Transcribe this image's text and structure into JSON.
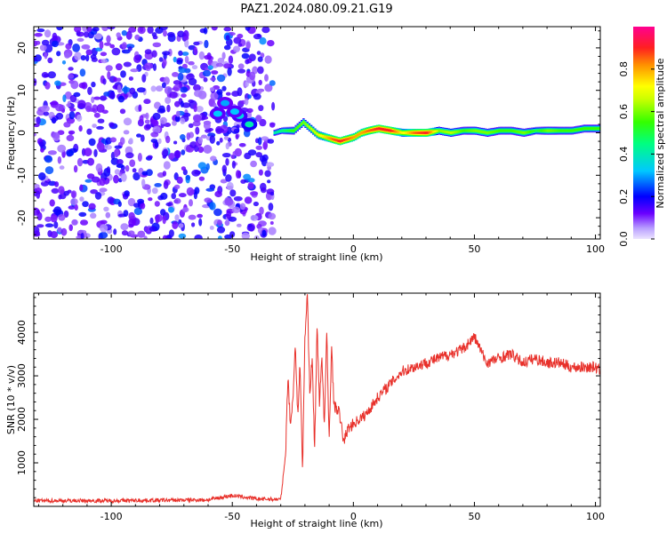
{
  "title": "PAZ1.2024.080.09.21.G19",
  "chart_data": [
    {
      "type": "heatmap",
      "xlabel": "Height of straight line (km)",
      "ylabel": "Frequency (Hz)",
      "xlim": [
        -132,
        102
      ],
      "ylim": [
        -25,
        25
      ],
      "xticks": [
        -100,
        -50,
        0,
        50,
        100
      ],
      "yticks": [
        -20,
        -10,
        0,
        10,
        20
      ],
      "colorbar": {
        "label": "Normalized spectral amplitude",
        "range": [
          0.0,
          1.0
        ],
        "ticks": [
          0.0,
          0.2,
          0.4,
          0.6,
          0.8
        ],
        "colors": [
          "#e6dcff",
          "#7a00ff",
          "#0000ff",
          "#00c8ff",
          "#00ff80",
          "#7fff00",
          "#ffff00",
          "#ff8000",
          "#ff0030",
          "#ff0090"
        ]
      },
      "noise_region": {
        "x": [
          -132,
          -33
        ],
        "y": [
          -25,
          25
        ],
        "amplitude": [
          0.05,
          0.2
        ]
      },
      "signal_trace": {
        "x": [
          -33,
          -30,
          -25,
          -21,
          -18,
          -15,
          -12,
          -9,
          -6,
          -3,
          0,
          3,
          6,
          10,
          15,
          20,
          25,
          30,
          35,
          40,
          45,
          50,
          55,
          60,
          65,
          70,
          75,
          80,
          85,
          90,
          95,
          100
        ],
        "frequency": [
          0,
          0.5,
          0.5,
          2.5,
          1,
          -0.5,
          -1,
          -1.5,
          -2,
          -1.5,
          -1,
          0,
          0.5,
          1,
          0.5,
          0,
          0,
          0,
          0.5,
          0,
          0.5,
          0.5,
          0,
          0.5,
          0.5,
          0,
          0.5,
          0.5,
          0.5,
          0.5,
          1,
          1
        ],
        "amplitude": [
          0.4,
          0.45,
          0.55,
          0.6,
          0.65,
          0.7,
          0.75,
          0.85,
          0.9,
          0.85,
          0.8,
          0.8,
          0.85,
          0.9,
          0.9,
          0.7,
          0.85,
          0.9,
          0.6,
          0.65,
          0.55,
          0.6,
          0.6,
          0.55,
          0.55,
          0.6,
          0.5,
          0.6,
          0.55,
          0.55,
          0.55,
          0.55
        ]
      },
      "blobs": [
        {
          "x": -56,
          "y": 4.5,
          "amplitude": 0.22
        },
        {
          "x": -53,
          "y": 7,
          "amplitude": 0.2
        },
        {
          "x": -47,
          "y": 4,
          "amplitude": 0.25
        },
        {
          "x": -43,
          "y": 2,
          "amplitude": 0.3
        },
        {
          "x": -49,
          "y": 5,
          "amplitude": 0.22
        }
      ]
    },
    {
      "type": "line",
      "xlabel": "Height of straight line (km)",
      "ylabel": "SNR (10 * v/v)",
      "xlim": [
        -132,
        102
      ],
      "ylim": [
        0,
        4900
      ],
      "xticks": [
        -100,
        -50,
        0,
        50,
        100
      ],
      "yticks": [
        1000,
        2000,
        3000,
        4000
      ],
      "series": [
        {
          "color": "#e8302a",
          "x": [
            -132,
            -100,
            -60,
            -50,
            -40,
            -30,
            -28,
            -27,
            -26,
            -25,
            -24,
            -23,
            -22,
            -21,
            -20,
            -19,
            -18,
            -17,
            -16,
            -15,
            -14,
            -13,
            -12,
            -11,
            -10,
            -9,
            -8,
            -6,
            -4,
            -2,
            0,
            5,
            10,
            15,
            20,
            25,
            30,
            35,
            40,
            45,
            50,
            55,
            60,
            65,
            70,
            75,
            80,
            85,
            90,
            95,
            100,
            102
          ],
          "y": [
            130,
            130,
            150,
            250,
            170,
            160,
            1200,
            3050,
            1800,
            2500,
            3700,
            2100,
            3300,
            800,
            3900,
            4900,
            2600,
            3400,
            1300,
            4100,
            2400,
            3500,
            1800,
            4000,
            1500,
            3700,
            2300,
            2200,
            1500,
            1800,
            1900,
            2100,
            2500,
            2800,
            3100,
            3200,
            3300,
            3400,
            3500,
            3600,
            3900,
            3300,
            3400,
            3500,
            3300,
            3400,
            3300,
            3300,
            3200,
            3200,
            3200,
            3100
          ]
        }
      ]
    }
  ]
}
